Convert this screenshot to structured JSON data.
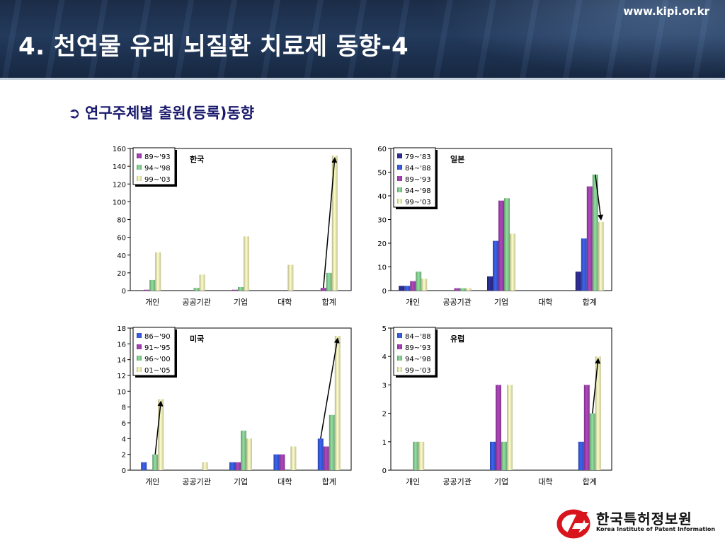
{
  "header": {
    "url": "www.kipi.or.kr",
    "title": "4. 천연물 유래 뇌질환 치료제 동향-4"
  },
  "subtitle": "연구주체별 출원(등록)동향",
  "logo": {
    "name_ko": "한국특허정보원",
    "name_en": "Korea Institute of Patent Information"
  },
  "colors": {
    "dark_blue": "#2a2a8c",
    "blue": "#3557d4",
    "purple": "#9b3fa8",
    "green": "#7fc48a",
    "cream": "#e8e7b0"
  },
  "chart_data": [
    {
      "type": "bar",
      "title": "한국",
      "categories": [
        "개인",
        "공공기관",
        "기업",
        "대학",
        "합계"
      ],
      "ylim": [
        0,
        160
      ],
      "yticks": [
        "0",
        "20",
        "40",
        "60",
        "80",
        "100",
        "120",
        "140",
        "160"
      ],
      "legend_position": "top-left",
      "series": [
        {
          "name": "89~'93",
          "color": "#9b3fa8",
          "values": [
            1,
            0,
            1,
            0,
            3
          ]
        },
        {
          "name": "94~'98",
          "color": "#7fc48a",
          "values": [
            12,
            3,
            4,
            0,
            20
          ]
        },
        {
          "name": "99~'03",
          "color": "#e8e7b0",
          "values": [
            43,
            18,
            61,
            29,
            152
          ]
        }
      ],
      "arrows": [
        {
          "category": "합계",
          "from_series": 0,
          "to_series": 2
        }
      ]
    },
    {
      "type": "bar",
      "title": "일본",
      "categories": [
        "개인",
        "공공기관",
        "기업",
        "대학",
        "합계"
      ],
      "ylim": [
        0,
        60
      ],
      "yticks": [
        "0",
        "10",
        "20",
        "30",
        "40",
        "50",
        "60"
      ],
      "legend_position": "top-left",
      "series": [
        {
          "name": "79~'83",
          "color": "#2a2a8c",
          "values": [
            2,
            0,
            6,
            0,
            8
          ]
        },
        {
          "name": "84~'88",
          "color": "#3557d4",
          "values": [
            2,
            0,
            21,
            0,
            22
          ]
        },
        {
          "name": "89~'93",
          "color": "#9b3fa8",
          "values": [
            4,
            1,
            38,
            0,
            44
          ]
        },
        {
          "name": "94~'98",
          "color": "#7fc48a",
          "values": [
            8,
            1,
            39,
            0,
            49
          ]
        },
        {
          "name": "99~'03",
          "color": "#e8e7b0",
          "values": [
            5,
            1,
            24,
            0,
            29
          ]
        }
      ],
      "arrows": [
        {
          "category": "합계",
          "from_series": 3,
          "to_series": 4
        }
      ]
    },
    {
      "type": "bar",
      "title": "미국",
      "categories": [
        "개인",
        "공공기관",
        "기업",
        "대학",
        "합계"
      ],
      "ylim": [
        0,
        18
      ],
      "yticks": [
        "0",
        "2",
        "4",
        "6",
        "8",
        "10",
        "12",
        "14",
        "16",
        "18"
      ],
      "legend_position": "top-left",
      "series": [
        {
          "name": "86~'90",
          "color": "#3557d4",
          "values": [
            1,
            0,
            1,
            2,
            4
          ]
        },
        {
          "name": "91~'95",
          "color": "#9b3fa8",
          "values": [
            0,
            0,
            1,
            2,
            3
          ]
        },
        {
          "name": "96~'00",
          "color": "#7fc48a",
          "values": [
            2,
            0,
            5,
            0,
            7
          ]
        },
        {
          "name": "01~'05",
          "color": "#e8e7b0",
          "values": [
            9,
            1,
            4,
            3,
            17
          ]
        }
      ],
      "arrows": [
        {
          "category": "개인",
          "from_series": 2,
          "to_series": 3
        },
        {
          "category": "합계",
          "from_series": 0,
          "to_series": 3
        }
      ]
    },
    {
      "type": "bar",
      "title": "유럽",
      "categories": [
        "개인",
        "공공기관",
        "기업",
        "대학",
        "합계"
      ],
      "ylim": [
        0,
        5
      ],
      "yticks": [
        "0",
        "1",
        "2",
        "3",
        "4",
        "5"
      ],
      "legend_position": "top-left",
      "series": [
        {
          "name": "84~'88",
          "color": "#3557d4",
          "values": [
            0,
            0,
            1,
            0,
            1
          ]
        },
        {
          "name": "89~'93",
          "color": "#9b3fa8",
          "values": [
            0,
            0,
            3,
            0,
            3
          ]
        },
        {
          "name": "94~'98",
          "color": "#7fc48a",
          "values": [
            1,
            0,
            1,
            0,
            2
          ]
        },
        {
          "name": "99~'03",
          "color": "#e8e7b0",
          "values": [
            1,
            0,
            3,
            0,
            4
          ]
        }
      ],
      "arrows": [
        {
          "category": "합계",
          "from_series": 2,
          "to_series": 3
        }
      ]
    }
  ]
}
